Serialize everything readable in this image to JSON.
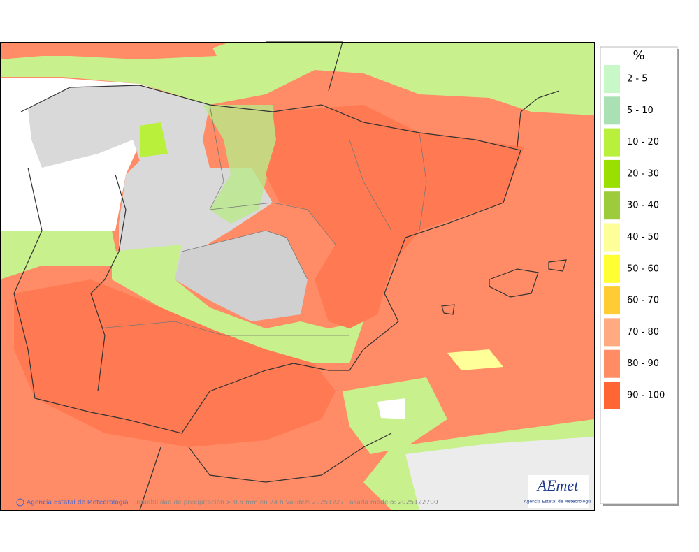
{
  "legend": {
    "title": "%",
    "items": [
      {
        "label": "2 - 5",
        "color": "#c8f7c8"
      },
      {
        "label": "5 - 10",
        "color": "#a9e0b4"
      },
      {
        "label": "10 - 20",
        "color": "#b8f03c"
      },
      {
        "label": "20 - 30",
        "color": "#99e000"
      },
      {
        "label": "30 - 40",
        "color": "#9ccc3c"
      },
      {
        "label": "40 - 50",
        "color": "#ffff99"
      },
      {
        "label": "50 - 60",
        "color": "#ffff33"
      },
      {
        "label": "60 - 70",
        "color": "#ffcc33"
      },
      {
        "label": "70 - 80",
        "color": "#ffaa80"
      },
      {
        "label": "80 - 90",
        "color": "#ff8c62"
      },
      {
        "label": "90 - 100",
        "color": "#ff6633"
      }
    ]
  },
  "footer": {
    "credit": "Agencia Estatal de Meteorología",
    "caption": "Probabilidad de precipitación > 0.5 mm en 24 h Validez: 20251227 Pasada modelo: 2025122700"
  },
  "logo": {
    "name": "AEmet",
    "subtitle": "Agencia Estatal de Meteorología"
  }
}
